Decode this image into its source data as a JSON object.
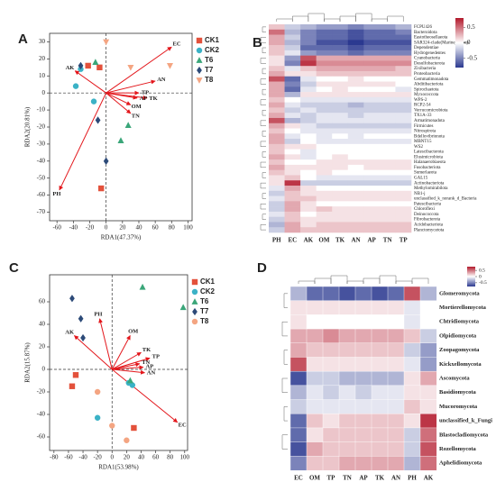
{
  "chart_data": [
    {
      "type": "biplot",
      "panel": "A",
      "xlabel": "RDA1(47.37%)",
      "ylabel": "RDA2(20.81%)",
      "xlim": [
        -69,
        105
      ],
      "ylim": [
        -75,
        35
      ],
      "xticks": [
        -60,
        -40,
        -20,
        0,
        20,
        40,
        60,
        80,
        100
      ],
      "yticks": [
        -70,
        -60,
        -50,
        -40,
        -30,
        -20,
        -10,
        0,
        10,
        20,
        30
      ],
      "arrow_color": "#e3161b",
      "series": [
        {
          "name": "CK1",
          "color": "#e3513b",
          "marker": "square",
          "x": [
            -22,
            -8,
            -6
          ],
          "values": [
            16,
            15,
            -56
          ]
        },
        {
          "name": "CK2",
          "color": "#3bb2c6",
          "marker": "circle",
          "x": [
            -31,
            -37,
            -15
          ],
          "values": [
            14,
            4,
            -5
          ]
        },
        {
          "name": "T6",
          "color": "#3aa679",
          "marker": "triangle",
          "x": [
            -13,
            18,
            27
          ],
          "values": [
            18,
            -28,
            -19
          ]
        },
        {
          "name": "T7",
          "color": "#2c4a78",
          "marker": "diamond",
          "x": [
            -31,
            -10,
            0
          ],
          "values": [
            16,
            -16,
            -40
          ]
        },
        {
          "name": "T8",
          "color": "#f4a582",
          "marker": "tridown",
          "x": [
            0,
            30,
            78
          ],
          "values": [
            30,
            15,
            16
          ]
        }
      ],
      "arrows": {
        "labels": [
          "EC",
          "AN",
          "TP",
          "TK",
          "AP",
          "OM",
          "TN",
          "AK",
          "PH"
        ],
        "x": [
          80,
          60,
          40,
          50,
          38,
          30,
          30,
          -38,
          -57
        ],
        "values": [
          27,
          7,
          0,
          -3,
          -3,
          -7,
          -12,
          13,
          -57
        ]
      }
    },
    {
      "type": "heatmap",
      "panel": "B",
      "columns": [
        "PH",
        "EC",
        "AK",
        "OM",
        "TK",
        "AN",
        "AP",
        "TN",
        "TP"
      ],
      "rows": [
        "FCPU426",
        "Bacteroidota",
        "Eastotheosellaeota",
        "SAR324-clade(Marine_Group",
        "Dependentiae",
        "Hydrogenedentes",
        "Cyanobacteria",
        "Desulfobacterota",
        "Zixibacteria",
        "Proteobacteria",
        "Gemmatimonadota",
        "Abditibacteriota",
        "Spirochaetota",
        "Myxococcota",
        "WPS-2",
        "RCP2-54",
        "Verrucomicrobiota",
        "TX1A-33",
        "Armatimonadota",
        "Firmicutes",
        "Nitrospirota",
        "Bdellovibrionota",
        "MBNT15",
        "WS2",
        "Latescibacterota",
        "Elusimicrobiota",
        "Halanaerobiaeota",
        "Fusobacteriota",
        "Sumerlaeota",
        "GAL15",
        "Actinobacteriota",
        "Methylomirabilota",
        "NB1-j",
        "unclassified_k_norank_d_Bacteria",
        "Patescibacteria",
        "Chloroflexi",
        "Deinococcota",
        "Fibrobacterota",
        "Acidobacteriota",
        "Planctomycetota"
      ],
      "values": [
        [
          0.2,
          -0.2,
          -0.3,
          -0.4,
          -0.4,
          -0.5,
          -0.4,
          -0.4,
          -0.3
        ],
        [
          0.5,
          -0.3,
          -0.5,
          -0.6,
          -0.6,
          -0.7,
          -0.6,
          -0.6,
          -0.5
        ],
        [
          0.3,
          -0.2,
          -0.5,
          -0.6,
          -0.6,
          -0.7,
          -0.6,
          -0.6,
          -0.6
        ],
        [
          0.3,
          -0.3,
          -0.5,
          -0.7,
          -0.7,
          -0.8,
          -0.7,
          -0.7,
          -0.7
        ],
        [
          0.2,
          -0.2,
          -0.6,
          -0.6,
          -0.6,
          -0.7,
          -0.6,
          -0.6,
          -0.6
        ],
        [
          0.2,
          -0.1,
          -0.4,
          -0.5,
          -0.5,
          -0.6,
          -0.5,
          -0.5,
          -0.5
        ],
        [
          0.1,
          -0.4,
          0.6,
          0.3,
          0.3,
          0.3,
          0.3,
          0.3,
          0.3
        ],
        [
          0.1,
          -0.5,
          0.7,
          0.4,
          0.4,
          0.4,
          0.4,
          0.4,
          0.4
        ],
        [
          0.2,
          -0.1,
          0.2,
          0.3,
          0.3,
          0.3,
          0.3,
          0.3,
          0.2
        ],
        [
          0.3,
          0.1,
          0.1,
          0.2,
          0.2,
          0.2,
          0.2,
          0.2,
          0.2
        ],
        [
          0.6,
          -0.6,
          -0.1,
          0.0,
          0.0,
          0.1,
          0.0,
          0.0,
          0.0
        ],
        [
          0.3,
          -0.5,
          -0.2,
          0.1,
          0.1,
          0.1,
          0.1,
          0.1,
          0.0
        ],
        [
          0.3,
          -0.6,
          -0.1,
          0.0,
          0.1,
          0.0,
          0.0,
          0.0,
          -0.1
        ],
        [
          0.3,
          -0.3,
          0.1,
          0.1,
          0.1,
          0.1,
          0.1,
          0.1,
          0.1
        ],
        [
          0.2,
          0.0,
          -0.1,
          -0.1,
          -0.1,
          -0.1,
          -0.1,
          -0.1,
          -0.1
        ],
        [
          0.3,
          -0.1,
          -0.2,
          -0.2,
          -0.2,
          -0.3,
          -0.2,
          -0.2,
          -0.2
        ],
        [
          0.2,
          -0.2,
          -0.1,
          -0.2,
          -0.2,
          -0.2,
          -0.2,
          -0.2,
          -0.2
        ],
        [
          0.3,
          -0.1,
          -0.2,
          -0.1,
          -0.1,
          -0.2,
          -0.1,
          -0.1,
          -0.1
        ],
        [
          0.6,
          -0.3,
          -0.2,
          -0.1,
          -0.1,
          -0.1,
          -0.1,
          -0.1,
          -0.1
        ],
        [
          0.3,
          0.1,
          -0.1,
          -0.2,
          -0.2,
          -0.2,
          -0.2,
          -0.2,
          -0.2
        ],
        [
          0.2,
          0.0,
          -0.1,
          -0.1,
          -0.1,
          -0.1,
          -0.1,
          -0.1,
          -0.1
        ],
        [
          0.3,
          -0.1,
          0.0,
          -0.1,
          0.0,
          -0.1,
          0.0,
          0.0,
          0.0
        ],
        [
          0.3,
          -0.2,
          0.0,
          -0.1,
          -0.1,
          -0.1,
          -0.1,
          -0.1,
          -0.1
        ],
        [
          0.2,
          0.1,
          0.1,
          0.0,
          0.0,
          0.0,
          0.0,
          0.0,
          0.0
        ],
        [
          0.2,
          0.0,
          -0.1,
          0.0,
          0.0,
          0.0,
          0.0,
          0.0,
          0.0
        ],
        [
          0.3,
          0.1,
          -0.1,
          0.0,
          0.1,
          0.0,
          0.0,
          0.0,
          0.0
        ],
        [
          0.2,
          0.0,
          0.0,
          0.1,
          0.1,
          0.1,
          0.1,
          0.1,
          0.1
        ],
        [
          0.3,
          0.1,
          0.1,
          0.1,
          0.1,
          0.0,
          0.1,
          0.1,
          0.1
        ],
        [
          0.2,
          0.1,
          0.0,
          0.1,
          0.0,
          0.0,
          0.0,
          0.0,
          0.0
        ],
        [
          0.1,
          0.2,
          0.0,
          -0.1,
          -0.1,
          -0.1,
          -0.1,
          -0.1,
          -0.1
        ],
        [
          0.1,
          0.7,
          -0.2,
          -0.2,
          -0.2,
          -0.2,
          -0.2,
          -0.2,
          -0.2
        ],
        [
          -0.1,
          0.3,
          0.1,
          0.0,
          0.0,
          0.0,
          0.0,
          0.0,
          0.0
        ],
        [
          -0.2,
          0.2,
          0.1,
          0.1,
          0.1,
          0.1,
          0.1,
          0.1,
          0.1
        ],
        [
          -0.1,
          0.2,
          0.2,
          0.1,
          0.1,
          0.1,
          0.1,
          0.1,
          0.1
        ],
        [
          -0.2,
          0.3,
          0.1,
          0.0,
          0.0,
          0.0,
          0.0,
          0.0,
          0.0
        ],
        [
          -0.2,
          0.3,
          0.1,
          0.2,
          0.1,
          0.1,
          0.1,
          0.1,
          0.1
        ],
        [
          -0.1,
          0.2,
          0.0,
          0.1,
          0.1,
          0.1,
          0.1,
          0.1,
          0.1
        ],
        [
          -0.2,
          0.2,
          0.1,
          0.1,
          0.1,
          0.1,
          0.1,
          0.1,
          0.1
        ],
        [
          -0.3,
          0.3,
          0.1,
          0.2,
          0.2,
          0.2,
          0.2,
          0.2,
          0.2
        ],
        [
          -0.2,
          0.3,
          0.2,
          0.2,
          0.2,
          0.2,
          0.2,
          0.2,
          0.2
        ]
      ],
      "clim": [
        -0.8,
        0.8
      ],
      "cticks": [
        0.5,
        0,
        -0.5
      ],
      "colors": [
        "#2b3990",
        "#ffffff",
        "#b2182b"
      ]
    },
    {
      "type": "biplot",
      "panel": "C",
      "xlabel": "RDA1(53.98%)",
      "ylabel": "RDA2(15.87%)",
      "xlim": [
        -86,
        104
      ],
      "ylim": [
        -72,
        84
      ],
      "xticks": [
        -80,
        -60,
        -40,
        -20,
        0,
        20,
        40,
        60,
        80,
        100
      ],
      "yticks": [
        -60,
        -40,
        -20,
        0,
        20,
        40,
        60
      ],
      "arrow_color": "#e3161b",
      "series": [
        {
          "name": "CK1",
          "color": "#e3513b",
          "marker": "square",
          "x": [
            -50,
            -55,
            30
          ],
          "values": [
            -5,
            -15,
            -52
          ]
        },
        {
          "name": "CK2",
          "color": "#3bb2c6",
          "marker": "circle",
          "x": [
            28,
            -20,
            23
          ],
          "values": [
            -14,
            -43,
            -12
          ]
        },
        {
          "name": "T6",
          "color": "#3aa679",
          "marker": "triangle",
          "x": [
            42,
            98,
            25
          ],
          "values": [
            73,
            55,
            -10
          ]
        },
        {
          "name": "T7",
          "color": "#2c4a78",
          "marker": "diamond",
          "x": [
            -55,
            -43,
            -40
          ],
          "values": [
            63,
            45,
            28
          ]
        },
        {
          "name": "T8",
          "color": "#f4a582",
          "marker": "circle",
          "x": [
            -20,
            0,
            20
          ],
          "values": [
            -20,
            -50,
            -63
          ]
        }
      ],
      "arrows": {
        "labels": [
          "PH",
          "AK",
          "OM",
          "TK",
          "TP",
          "TN",
          "AP",
          "AN",
          "EC"
        ],
        "x": [
          -17,
          -52,
          25,
          40,
          52,
          38,
          43,
          45,
          90
        ],
        "values": [
          45,
          30,
          30,
          15,
          10,
          5,
          2,
          -3,
          -47
        ]
      }
    },
    {
      "type": "heatmap",
      "panel": "D",
      "columns": [
        "EC",
        "OM",
        "TP",
        "TN",
        "AP",
        "TK",
        "AN",
        "PH",
        "AK"
      ],
      "rows": [
        "Glomeromycota",
        "Mortierellomycota",
        "Chtridiomycota",
        "Olpidiomycota",
        "Zoopagomycota",
        "Kickxellomycota",
        "Ascomycota",
        "Basidiomycota",
        "Mucoromycota",
        "unclassified_k_Fungi",
        "Blastocladiomycota",
        "Rozellomycota",
        "Aphelidiomycota"
      ],
      "values": [
        [
          -0.3,
          -0.6,
          -0.6,
          -0.7,
          -0.6,
          -0.7,
          -0.6,
          0.6,
          -0.3
        ],
        [
          0.1,
          0.1,
          0.1,
          0.1,
          0.1,
          0.1,
          0.1,
          -0.1,
          0.0
        ],
        [
          0.1,
          0.0,
          0.0,
          0.0,
          0.0,
          0.0,
          0.0,
          -0.1,
          0.0
        ],
        [
          0.3,
          0.3,
          0.4,
          0.3,
          0.3,
          0.3,
          0.3,
          0.2,
          -0.2
        ],
        [
          0.3,
          0.2,
          0.2,
          0.2,
          0.2,
          0.2,
          0.2,
          -0.2,
          -0.4
        ],
        [
          0.6,
          0.1,
          0.1,
          0.1,
          0.1,
          0.1,
          0.1,
          -0.1,
          -0.4
        ],
        [
          -0.7,
          -0.2,
          -0.2,
          -0.3,
          -0.3,
          -0.3,
          -0.3,
          0.1,
          0.3
        ],
        [
          -0.3,
          -0.1,
          -0.2,
          -0.1,
          -0.2,
          -0.1,
          -0.1,
          0.1,
          0.1
        ],
        [
          -0.2,
          -0.1,
          -0.1,
          -0.1,
          -0.1,
          -0.1,
          -0.1,
          0.2,
          0.1
        ],
        [
          -0.6,
          0.2,
          0.1,
          0.2,
          0.2,
          0.2,
          0.2,
          0.1,
          0.7
        ],
        [
          -0.6,
          0.1,
          0.2,
          0.2,
          0.2,
          0.2,
          0.2,
          -0.2,
          0.5
        ],
        [
          -0.7,
          0.3,
          0.2,
          0.2,
          0.2,
          0.2,
          0.2,
          -0.2,
          0.6
        ],
        [
          -0.5,
          0.2,
          0.2,
          0.3,
          0.3,
          0.3,
          0.3,
          -0.3,
          0.5
        ]
      ],
      "clim": [
        -0.8,
        0.8
      ],
      "cticks": [
        0.5,
        0,
        -0.5
      ],
      "colors": [
        "#2b3990",
        "#ffffff",
        "#b2182b"
      ]
    }
  ]
}
